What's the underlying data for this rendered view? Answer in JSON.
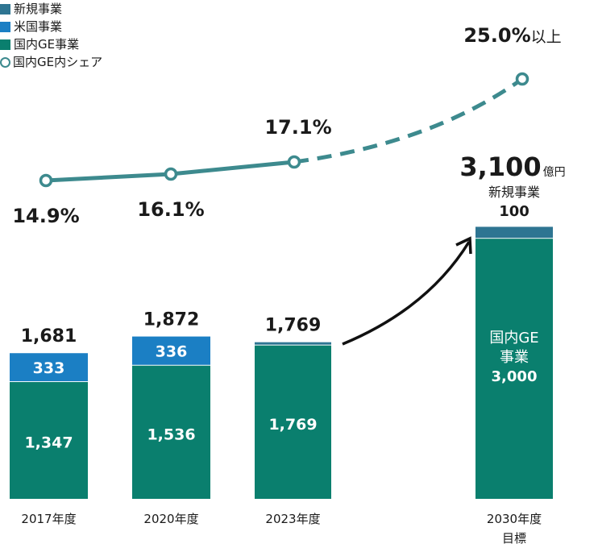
{
  "colors": {
    "new_business": "#2e7592",
    "us_business": "#1b7fc4",
    "domestic_ge": "#0a7f6e",
    "share_line": "#3d8a8e",
    "arrow": "#111111"
  },
  "legend": {
    "items": [
      {
        "label": "新規事業",
        "kind": "new"
      },
      {
        "label": "米国事業",
        "kind": "us"
      },
      {
        "label": "国内GE事業",
        "kind": "ge"
      },
      {
        "label": "国内GE内シェア",
        "kind": "share"
      }
    ]
  },
  "chart_data": {
    "type": "bar",
    "categories": [
      "2017年度",
      "2020年度",
      "2023年度",
      "2030年度\n目標"
    ],
    "series": [
      {
        "name": "国内GE事業",
        "values": [
          1347,
          1536,
          1769,
          3000
        ],
        "labels": [
          "1,347",
          "1,536",
          "1,769",
          "国内GE\n事業\n3,000"
        ]
      },
      {
        "name": "米国事業",
        "values": [
          333,
          336,
          0,
          0
        ],
        "labels": [
          "333",
          "336",
          "",
          ""
        ]
      },
      {
        "name": "新規事業",
        "values": [
          0,
          0,
          0,
          100
        ],
        "labels": [
          "",
          "",
          "",
          ""
        ]
      }
    ],
    "totals": [
      "1,681",
      "1,872",
      "1,769",
      "3,100"
    ],
    "target_total_unit": "億円",
    "target_new_label": "新規事業",
    "target_new_value": "100",
    "share": {
      "name": "国内GE内シェア",
      "values": [
        14.9,
        16.1,
        17.1,
        25.0
      ],
      "labels": [
        "14.9%",
        "16.1%",
        "17.1%",
        "25.0%以上"
      ],
      "projected_from_index": 2
    },
    "stacked": true,
    "grid": false
  }
}
